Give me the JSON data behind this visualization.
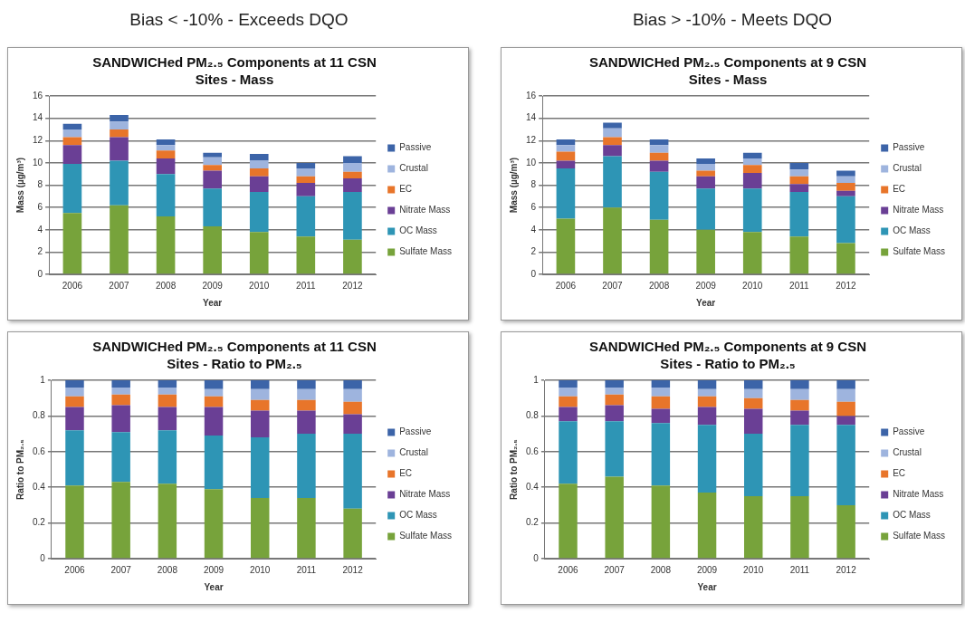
{
  "chart_data": [
    {
      "type": "bar",
      "subtitle": "Bias < -10% - Exceeds DQO",
      "title": "SANDWICHed PM₂.₅ Components at 11 CSN Sites - Mass",
      "xlabel": "Year",
      "ylabel": "Mass (µg/m³)",
      "categories": [
        "2006",
        "2007",
        "2008",
        "2009",
        "2010",
        "2011",
        "2012"
      ],
      "stacked": true,
      "ylim": [
        0,
        16
      ],
      "yticks": [
        0,
        2,
        4,
        6,
        8,
        10,
        12,
        14,
        16
      ],
      "grid": "y",
      "legend": "right",
      "series": [
        {
          "name": "Sulfate Mass",
          "color": "#77a33b",
          "values": [
            5.5,
            6.2,
            5.2,
            4.3,
            3.8,
            3.4,
            3.1
          ]
        },
        {
          "name": "OC Mass",
          "color": "#2e95b5",
          "values": [
            4.4,
            4.0,
            3.8,
            3.4,
            3.6,
            3.6,
            4.3
          ]
        },
        {
          "name": "Nitrate Mass",
          "color": "#6a3f95",
          "values": [
            1.7,
            2.1,
            1.4,
            1.6,
            1.4,
            1.2,
            1.2
          ]
        },
        {
          "name": "EC",
          "color": "#e8752a",
          "values": [
            0.7,
            0.7,
            0.7,
            0.5,
            0.7,
            0.6,
            0.6
          ]
        },
        {
          "name": "Crustal",
          "color": "#9eb4de",
          "values": [
            0.7,
            0.7,
            0.5,
            0.7,
            0.7,
            0.7,
            0.8
          ]
        },
        {
          "name": "Passive",
          "color": "#3c64a8",
          "values": [
            0.5,
            0.6,
            0.5,
            0.4,
            0.6,
            0.5,
            0.6
          ]
        }
      ]
    },
    {
      "type": "bar",
      "subtitle": "Bias > -10% - Meets DQO",
      "title": "SANDWICHed PM₂.₅ Components at 9 CSN Sites - Mass",
      "xlabel": "Year",
      "ylabel": "Mass (µg/m³)",
      "categories": [
        "2006",
        "2007",
        "2008",
        "2009",
        "2010",
        "2011",
        "2012"
      ],
      "stacked": true,
      "ylim": [
        0,
        16
      ],
      "yticks": [
        0,
        2,
        4,
        6,
        8,
        10,
        12,
        14,
        16
      ],
      "grid": "y",
      "legend": "right",
      "series": [
        {
          "name": "Sulfate Mass",
          "color": "#77a33b",
          "values": [
            5.0,
            6.0,
            4.9,
            4.0,
            3.8,
            3.4,
            2.8
          ]
        },
        {
          "name": "OC Mass",
          "color": "#2e95b5",
          "values": [
            4.5,
            4.6,
            4.3,
            3.7,
            3.9,
            4.0,
            4.2
          ]
        },
        {
          "name": "Nitrate Mass",
          "color": "#6a3f95",
          "values": [
            0.7,
            1.0,
            1.0,
            1.1,
            1.4,
            0.7,
            0.5
          ]
        },
        {
          "name": "EC",
          "color": "#e8752a",
          "values": [
            0.8,
            0.7,
            0.7,
            0.5,
            0.7,
            0.7,
            0.7
          ]
        },
        {
          "name": "Crustal",
          "color": "#9eb4de",
          "values": [
            0.6,
            0.8,
            0.7,
            0.6,
            0.6,
            0.6,
            0.6
          ]
        },
        {
          "name": "Passive",
          "color": "#3c64a8",
          "values": [
            0.5,
            0.5,
            0.5,
            0.5,
            0.5,
            0.6,
            0.5
          ]
        }
      ]
    },
    {
      "type": "bar",
      "title": "SANDWICHed PM₂.₅ Components at 11 CSN Sites - Ratio to PM₂.₅",
      "xlabel": "Year",
      "ylabel": "Ratio to PM₂.₅",
      "categories": [
        "2006",
        "2007",
        "2008",
        "2009",
        "2010",
        "2011",
        "2012"
      ],
      "stacked": true,
      "ylim": [
        0,
        1
      ],
      "yticks": [
        0,
        0.2,
        0.4,
        0.6,
        0.8,
        1
      ],
      "grid": "y",
      "legend": "right",
      "series": [
        {
          "name": "Sulfate Mass",
          "color": "#77a33b",
          "values": [
            0.41,
            0.43,
            0.42,
            0.39,
            0.34,
            0.34,
            0.28
          ]
        },
        {
          "name": "OC Mass",
          "color": "#2e95b5",
          "values": [
            0.31,
            0.28,
            0.3,
            0.3,
            0.34,
            0.36,
            0.42
          ]
        },
        {
          "name": "Nitrate Mass",
          "color": "#6a3f95",
          "values": [
            0.13,
            0.15,
            0.13,
            0.16,
            0.15,
            0.13,
            0.11
          ]
        },
        {
          "name": "EC",
          "color": "#e8752a",
          "values": [
            0.06,
            0.06,
            0.07,
            0.06,
            0.06,
            0.06,
            0.07
          ]
        },
        {
          "name": "Crustal",
          "color": "#9eb4de",
          "values": [
            0.05,
            0.04,
            0.04,
            0.04,
            0.06,
            0.06,
            0.07
          ]
        },
        {
          "name": "Passive",
          "color": "#3c64a8",
          "values": [
            0.04,
            0.04,
            0.04,
            0.05,
            0.05,
            0.05,
            0.05
          ]
        }
      ]
    },
    {
      "type": "bar",
      "title": "SANDWICHed PM₂.₅ Components at 9 CSN Sites - Ratio to PM₂.₅",
      "xlabel": "Year",
      "ylabel": "Ratio to PM₂.₅",
      "categories": [
        "2006",
        "2007",
        "2008",
        "2009",
        "2010",
        "2011",
        "2012"
      ],
      "stacked": true,
      "ylim": [
        0,
        1
      ],
      "yticks": [
        0,
        0.2,
        0.4,
        0.6,
        0.8,
        1
      ],
      "grid": "y",
      "legend": "right",
      "series": [
        {
          "name": "Sulfate Mass",
          "color": "#77a33b",
          "values": [
            0.42,
            0.46,
            0.41,
            0.37,
            0.35,
            0.35,
            0.3
          ]
        },
        {
          "name": "OC Mass",
          "color": "#2e95b5",
          "values": [
            0.35,
            0.31,
            0.35,
            0.38,
            0.35,
            0.4,
            0.45
          ]
        },
        {
          "name": "Nitrate Mass",
          "color": "#6a3f95",
          "values": [
            0.08,
            0.09,
            0.08,
            0.1,
            0.14,
            0.08,
            0.05
          ]
        },
        {
          "name": "EC",
          "color": "#e8752a",
          "values": [
            0.06,
            0.06,
            0.07,
            0.06,
            0.06,
            0.06,
            0.08
          ]
        },
        {
          "name": "Crustal",
          "color": "#9eb4de",
          "values": [
            0.05,
            0.04,
            0.05,
            0.04,
            0.05,
            0.06,
            0.07
          ]
        },
        {
          "name": "Passive",
          "color": "#3c64a8",
          "values": [
            0.04,
            0.04,
            0.04,
            0.05,
            0.05,
            0.05,
            0.05
          ]
        }
      ]
    }
  ]
}
